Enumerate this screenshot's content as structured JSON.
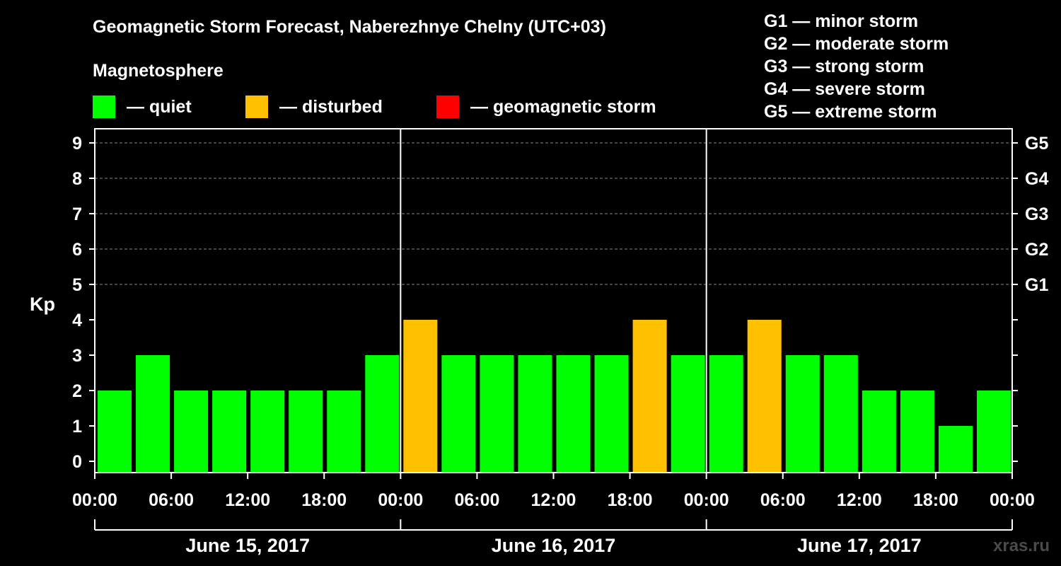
{
  "title": "Geomagnetic Storm Forecast, Naberezhnye Chelny (UTC+03)",
  "subtitle": "Magnetosphere",
  "legend": [
    {
      "label": "— quiet",
      "color": "#00ff00"
    },
    {
      "label": "— disturbed",
      "color": "#ffc000"
    },
    {
      "label": "— geomagnetic storm",
      "color": "#ff0000"
    }
  ],
  "g_scale": [
    "G1 — minor storm",
    "G2 — moderate storm",
    "G3 — strong storm",
    "G4 — severe storm",
    "G5 — extreme storm"
  ],
  "watermark": "xras.ru",
  "chart_data": {
    "type": "bar",
    "ylabel": "Kp",
    "ylim": [
      0,
      9
    ],
    "y_ticks": [
      0,
      1,
      2,
      3,
      4,
      5,
      6,
      7,
      8,
      9
    ],
    "right_ticks": [
      {
        "kp": 5,
        "label": "G1"
      },
      {
        "kp": 6,
        "label": "G2"
      },
      {
        "kp": 7,
        "label": "G3"
      },
      {
        "kp": 8,
        "label": "G4"
      },
      {
        "kp": 9,
        "label": "G5"
      }
    ],
    "x_tick_labels": [
      "00:00",
      "06:00",
      "12:00",
      "18:00",
      "00:00",
      "06:00",
      "12:00",
      "18:00",
      "00:00",
      "06:00",
      "12:00",
      "18:00",
      "00:00"
    ],
    "days": [
      "June 15, 2017",
      "June 16, 2017",
      "June 17, 2017"
    ],
    "interval_hours": 3,
    "values": [
      2,
      3,
      2,
      2,
      2,
      2,
      2,
      3,
      4,
      3,
      3,
      3,
      3,
      3,
      4,
      3,
      3,
      4,
      3,
      3,
      2,
      2,
      1,
      2
    ],
    "colors": {
      "quiet": "#00ff00",
      "disturbed": "#ffc000",
      "storm": "#ff0000"
    },
    "thresholds": {
      "disturbed": 4,
      "storm": 5
    }
  }
}
